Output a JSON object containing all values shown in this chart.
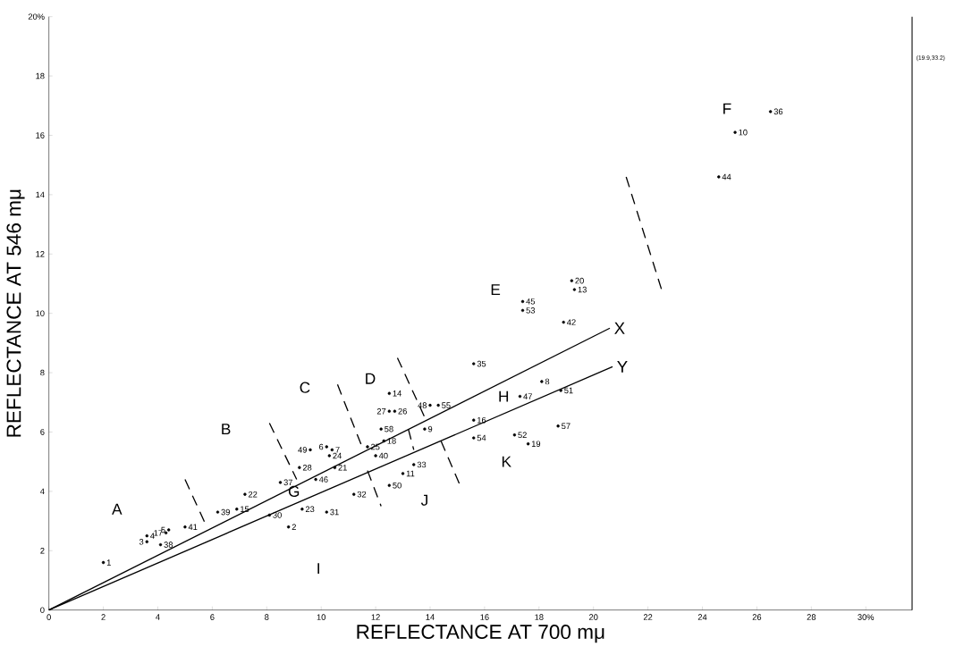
{
  "chart_data": {
    "type": "scatter",
    "xlabel": "REFLECTANCE AT 700 mμ",
    "ylabel": "REFLECTANCE AT 546 mμ",
    "xlim": [
      0,
      31.7
    ],
    "ylim": [
      0,
      20
    ],
    "xticks": [
      0,
      2,
      4,
      6,
      8,
      10,
      12,
      14,
      16,
      18,
      20,
      22,
      24,
      26,
      28,
      {
        "value": 30,
        "label": "30%"
      }
    ],
    "yticks": [
      0,
      2,
      4,
      6,
      8,
      10,
      12,
      14,
      16,
      18,
      {
        "value": 20,
        "label": "20%"
      }
    ],
    "series": [
      {
        "marker": "circle",
        "color": "#000000",
        "x": [
          2.0,
          3.6,
          3.6,
          4.3,
          4.4,
          4.1,
          5.0,
          6.2,
          6.9,
          7.2,
          8.5,
          8.1,
          8.8,
          9.6,
          10.2,
          10.4,
          10.3,
          9.2,
          10.5,
          9.8,
          9.3,
          10.2,
          11.2,
          11.7,
          12.2,
          12.0,
          12.3,
          12.5,
          12.7,
          12.5,
          14.0,
          14.3,
          13.8,
          13.4,
          13.0,
          12.5,
          15.6,
          17.4,
          17.4,
          19.2,
          19.3,
          18.9,
          15.6,
          17.3,
          18.1,
          18.8,
          15.6,
          17.1,
          18.7,
          17.6,
          26.5,
          25.2,
          24.6
        ],
        "values": [
          1.6,
          2.5,
          2.3,
          2.6,
          2.7,
          2.2,
          2.8,
          3.3,
          3.4,
          3.9,
          4.3,
          3.2,
          2.8,
          5.4,
          5.5,
          5.4,
          5.2,
          4.8,
          4.8,
          4.4,
          3.4,
          3.3,
          3.9,
          5.5,
          6.1,
          5.2,
          5.7,
          6.7,
          6.7,
          7.3,
          6.9,
          6.9,
          6.1,
          4.9,
          4.6,
          4.2,
          8.3,
          10.4,
          10.1,
          11.1,
          10.8,
          9.7,
          6.4,
          7.2,
          7.7,
          7.4,
          5.8,
          5.9,
          6.2,
          5.6,
          16.8,
          16.1,
          14.6
        ]
      },
      {
        "type": "line",
        "name": "X",
        "color": "#000000",
        "x": [
          0,
          20.6
        ],
        "values": [
          0,
          9.5
        ]
      },
      {
        "type": "line",
        "name": "Y",
        "color": "#000000",
        "x": [
          0,
          20.7
        ],
        "values": [
          0,
          8.2
        ]
      },
      {
        "type": "line",
        "line_style": "dashed",
        "color": "#000000",
        "x": [
          5.0,
          5.8
        ],
        "values": [
          4.4,
          2.8
        ]
      },
      {
        "type": "line",
        "line_style": "dashed",
        "color": "#000000",
        "x": [
          8.1,
          9.1
        ],
        "values": [
          6.3,
          4.4
        ]
      },
      {
        "type": "line",
        "line_style": "dashed",
        "color": "#000000",
        "x": [
          10.6,
          11.5
        ],
        "values": [
          7.6,
          5.5
        ]
      },
      {
        "type": "line",
        "line_style": "dashed",
        "color": "#000000",
        "x": [
          12.8,
          13.8
        ],
        "values": [
          8.5,
          6.5
        ]
      },
      {
        "type": "line",
        "line_style": "dashed",
        "color": "#000000",
        "x": [
          11.7,
          12.2
        ],
        "values": [
          4.7,
          3.5
        ]
      },
      {
        "type": "line",
        "line_style": "dashed",
        "color": "#000000",
        "x": [
          13.2,
          13.4
        ],
        "values": [
          6.1,
          5.4
        ]
      },
      {
        "type": "line",
        "line_style": "dashed",
        "color": "#000000",
        "x": [
          14.4,
          15.1
        ],
        "values": [
          5.7,
          4.2
        ]
      },
      {
        "type": "line",
        "line_style": "dashed",
        "color": "#000000",
        "x": [
          21.2,
          22.5
        ],
        "values": [
          14.6,
          10.8
        ]
      }
    ],
    "annotations": [
      {
        "text": "1",
        "x": 2.0,
        "y": 1.6
      },
      {
        "text": "4",
        "x": 3.6,
        "y": 2.5
      },
      {
        "text": "3",
        "x": 3.6,
        "y": 2.3
      },
      {
        "text": "17",
        "x": 4.3,
        "y": 2.6
      },
      {
        "text": "5",
        "x": 4.4,
        "y": 2.7
      },
      {
        "text": "38",
        "x": 4.1,
        "y": 2.2
      },
      {
        "text": "41",
        "x": 5.0,
        "y": 2.8
      },
      {
        "text": "39",
        "x": 6.2,
        "y": 3.3
      },
      {
        "text": "15",
        "x": 6.9,
        "y": 3.4
      },
      {
        "text": "22",
        "x": 7.2,
        "y": 3.9
      },
      {
        "text": "37",
        "x": 8.5,
        "y": 4.3
      },
      {
        "text": "30",
        "x": 8.1,
        "y": 3.2
      },
      {
        "text": "2",
        "x": 8.8,
        "y": 2.8
      },
      {
        "text": "49",
        "x": 9.6,
        "y": 5.4
      },
      {
        "text": "6",
        "x": 10.2,
        "y": 5.5
      },
      {
        "text": "7",
        "x": 10.4,
        "y": 5.4
      },
      {
        "text": "24",
        "x": 10.3,
        "y": 5.2
      },
      {
        "text": "28",
        "x": 9.2,
        "y": 4.8
      },
      {
        "text": "21",
        "x": 10.5,
        "y": 4.8
      },
      {
        "text": "46",
        "x": 9.8,
        "y": 4.4
      },
      {
        "text": "23",
        "x": 9.3,
        "y": 3.4
      },
      {
        "text": "31",
        "x": 10.2,
        "y": 3.3
      },
      {
        "text": "32",
        "x": 11.2,
        "y": 3.9
      },
      {
        "text": "25",
        "x": 11.7,
        "y": 5.5
      },
      {
        "text": "58",
        "x": 12.2,
        "y": 6.1
      },
      {
        "text": "40",
        "x": 12.0,
        "y": 5.2
      },
      {
        "text": "18",
        "x": 12.3,
        "y": 5.7
      },
      {
        "text": "27",
        "x": 12.5,
        "y": 6.7
      },
      {
        "text": "26",
        "x": 12.7,
        "y": 6.7
      },
      {
        "text": "14",
        "x": 12.5,
        "y": 7.3
      },
      {
        "text": "48",
        "x": 14.0,
        "y": 6.9
      },
      {
        "text": "55",
        "x": 14.3,
        "y": 6.9
      },
      {
        "text": "9",
        "x": 13.8,
        "y": 6.1
      },
      {
        "text": "33",
        "x": 13.4,
        "y": 4.9
      },
      {
        "text": "11",
        "x": 13.0,
        "y": 4.6
      },
      {
        "text": "50",
        "x": 12.5,
        "y": 4.2
      },
      {
        "text": "35",
        "x": 15.6,
        "y": 8.3
      },
      {
        "text": "45",
        "x": 17.4,
        "y": 10.4
      },
      {
        "text": "53",
        "x": 17.4,
        "y": 10.1
      },
      {
        "text": "20",
        "x": 19.2,
        "y": 11.1
      },
      {
        "text": "13",
        "x": 19.3,
        "y": 10.8
      },
      {
        "text": "42",
        "x": 18.9,
        "y": 9.7
      },
      {
        "text": "16",
        "x": 15.6,
        "y": 6.4
      },
      {
        "text": "47",
        "x": 17.3,
        "y": 7.2
      },
      {
        "text": "8",
        "x": 18.1,
        "y": 7.7
      },
      {
        "text": "51",
        "x": 18.8,
        "y": 7.4
      },
      {
        "text": "54",
        "x": 15.6,
        "y": 5.8
      },
      {
        "text": "52",
        "x": 17.1,
        "y": 5.9
      },
      {
        "text": "57",
        "x": 18.7,
        "y": 6.2
      },
      {
        "text": "19",
        "x": 17.6,
        "y": 5.6
      },
      {
        "text": "36",
        "x": 26.5,
        "y": 16.8
      },
      {
        "text": "10",
        "x": 25.2,
        "y": 16.1
      },
      {
        "text": "44",
        "x": 24.6,
        "y": 14.6
      },
      "A",
      "B",
      "C",
      "D",
      "E",
      "F",
      "G",
      "H",
      "I",
      "J",
      "K",
      "(19.9,33.2)"
    ]
  }
}
